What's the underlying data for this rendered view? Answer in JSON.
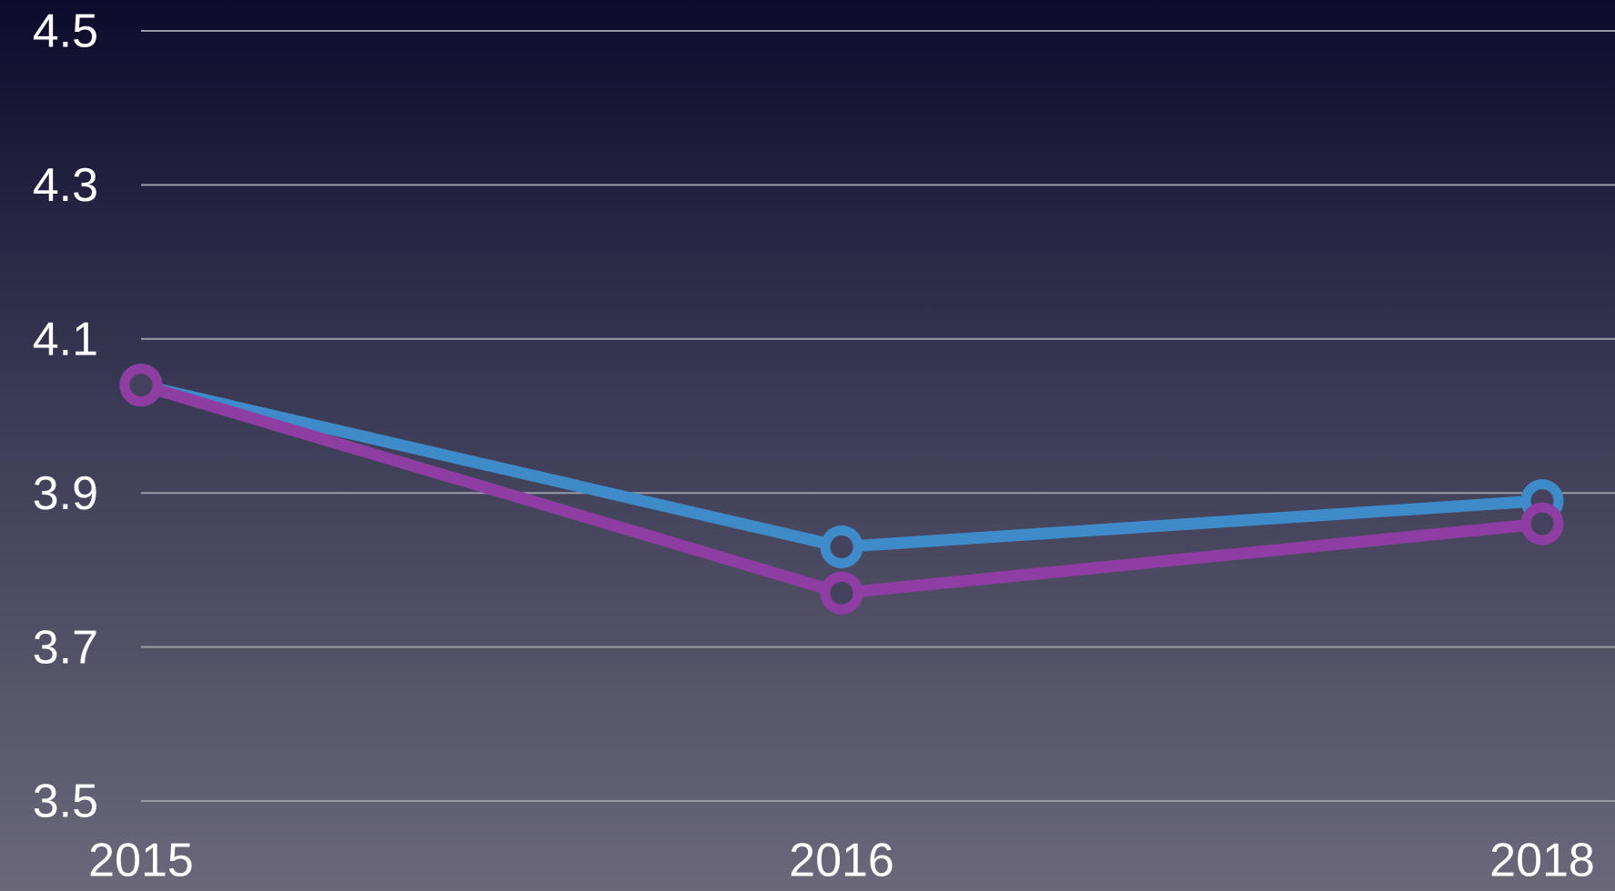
{
  "chart_data": {
    "type": "line",
    "categories": [
      "2015",
      "2016",
      "2018"
    ],
    "series": [
      {
        "color": "#3f8ac9",
        "values": [
          4.04,
          3.83,
          3.89
        ]
      },
      {
        "color": "#8e3ea3",
        "values": [
          4.04,
          3.77,
          3.86
        ]
      }
    ],
    "ylim": [
      3.5,
      4.5
    ],
    "yticks": [
      3.5,
      3.7,
      3.9,
      4.1,
      4.3,
      4.5
    ],
    "grid": true
  }
}
